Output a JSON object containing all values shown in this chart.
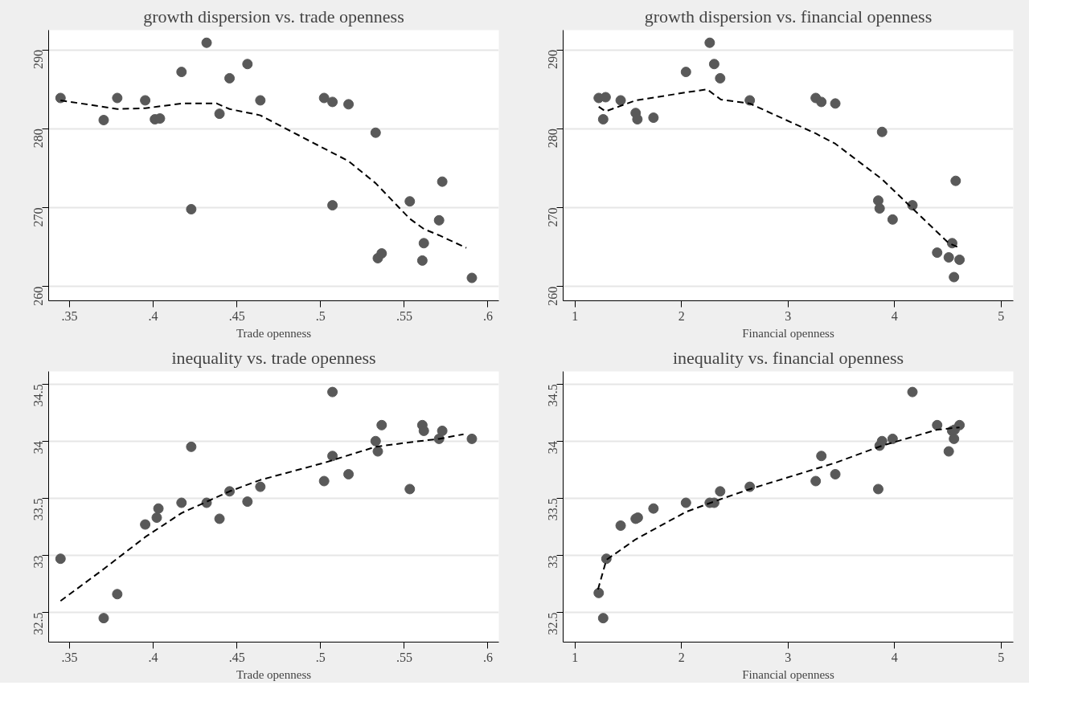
{
  "chart_data": [
    {
      "type": "scatter",
      "title": "growth dispersion vs. trade openness",
      "xlabel": "Trade openness",
      "xlim": [
        0.3375,
        0.6065
      ],
      "xticks": [
        {
          "value": 0.35,
          "label": ".35"
        },
        {
          "value": 0.4,
          "label": ".4"
        },
        {
          "value": 0.45,
          "label": ".45"
        },
        {
          "value": 0.5,
          "label": ".5"
        },
        {
          "value": 0.55,
          "label": ".55"
        },
        {
          "value": 0.6,
          "label": ".6"
        }
      ],
      "ylim": [
        258.2,
        292.5
      ],
      "yticks": [
        260,
        270,
        280,
        290
      ],
      "grid": "y",
      "series": [
        {
          "marker": "circle",
          "color": "#595959",
          "x": [
            0.3446,
            0.3704,
            0.3785,
            0.3952,
            0.401,
            0.404,
            0.4169,
            0.4227,
            0.4319,
            0.4396,
            0.4456,
            0.4563,
            0.464,
            0.5021,
            0.5071,
            0.5071,
            0.5167,
            0.5329,
            0.5342,
            0.5365,
            0.5533,
            0.5617,
            0.5608,
            0.5727,
            0.5708,
            0.5904
          ],
          "values": [
            283.9,
            281.1,
            283.9,
            283.6,
            281.2,
            281.3,
            287.2,
            269.8,
            290.9,
            281.9,
            286.4,
            288.2,
            283.6,
            283.9,
            283.4,
            270.3,
            283.1,
            279.5,
            263.6,
            264.2,
            270.8,
            265.5,
            263.3,
            273.3,
            268.4,
            261.1
          ]
        },
        {
          "type": "line",
          "line_style": "dashed",
          "color": "#000000",
          "x": [
            0.3446,
            0.3785,
            0.3952,
            0.4025,
            0.4169,
            0.438,
            0.4456,
            0.464,
            0.5021,
            0.5167,
            0.5329,
            0.5533,
            0.5617,
            0.5708,
            0.5871
          ],
          "values": [
            283.6,
            282.5,
            282.6,
            282.8,
            283.2,
            283.2,
            282.5,
            281.7,
            277.5,
            275.9,
            273.1,
            268.6,
            267.3,
            266.5,
            264.9
          ]
        }
      ]
    },
    {
      "type": "scatter",
      "title": "growth dispersion vs. financial openness",
      "xlabel": "Financial openness",
      "xlim": [
        0.889,
        5.115
      ],
      "xticks": [
        1,
        2,
        3,
        4,
        5
      ],
      "ylim": [
        258.2,
        292.5
      ],
      "yticks": [
        260,
        270,
        280,
        290
      ],
      "grid": "y",
      "series": [
        {
          "marker": "circle",
          "color": "#595959",
          "x": [
            1.223,
            1.288,
            1.265,
            1.429,
            1.57,
            1.586,
            1.737,
            2.042,
            2.265,
            2.307,
            2.363,
            2.641,
            3.26,
            3.313,
            3.444,
            3.883,
            3.847,
            3.86,
            3.982,
            4.168,
            4.574,
            4.4,
            4.541,
            4.509,
            4.61,
            4.558
          ],
          "values": [
            283.9,
            284.0,
            281.2,
            283.6,
            282.0,
            281.2,
            281.4,
            287.2,
            290.9,
            288.2,
            286.4,
            283.6,
            283.9,
            283.4,
            283.2,
            279.6,
            270.9,
            269.9,
            268.5,
            270.3,
            273.4,
            264.3,
            265.5,
            263.7,
            263.4,
            261.2
          ]
        },
        {
          "type": "line",
          "line_style": "dashed",
          "color": "#000000",
          "x": [
            1.223,
            1.288,
            1.57,
            2.042,
            2.24,
            2.37,
            2.641,
            3.26,
            3.444,
            3.883,
            4.168,
            4.509,
            4.61
          ],
          "values": [
            282.8,
            282.2,
            283.6,
            284.6,
            285.0,
            283.7,
            283.2,
            279.4,
            278.1,
            273.6,
            269.9,
            265.5,
            264.9
          ]
        }
      ]
    },
    {
      "type": "scatter",
      "title": "inequality vs. trade openness",
      "xlabel": "Trade openness",
      "xlim": [
        0.3375,
        0.6065
      ],
      "xticks": [
        {
          "value": 0.35,
          "label": ".35"
        },
        {
          "value": 0.4,
          "label": ".4"
        },
        {
          "value": 0.45,
          "label": ".45"
        },
        {
          "value": 0.5,
          "label": ".5"
        },
        {
          "value": 0.55,
          "label": ".55"
        },
        {
          "value": 0.6,
          "label": ".6"
        }
      ],
      "ylim": [
        32.24,
        34.61
      ],
      "yticks": [
        32.5,
        33,
        33.5,
        34,
        34.5
      ],
      "grid": "y",
      "series": [
        {
          "marker": "circle",
          "color": "#595959",
          "x": [
            0.3446,
            0.3704,
            0.3785,
            0.3952,
            0.4021,
            0.4031,
            0.4169,
            0.4227,
            0.4319,
            0.4396,
            0.4456,
            0.4563,
            0.464,
            0.5021,
            0.5071,
            0.5071,
            0.5167,
            0.5329,
            0.5342,
            0.5365,
            0.5533,
            0.5608,
            0.5617,
            0.5708,
            0.5727,
            0.5904
          ],
          "values": [
            32.97,
            32.45,
            32.66,
            33.27,
            33.33,
            33.41,
            33.46,
            33.95,
            33.46,
            33.32,
            33.56,
            33.47,
            33.6,
            33.65,
            34.43,
            33.87,
            33.71,
            34.0,
            33.91,
            34.14,
            33.58,
            34.14,
            34.09,
            34.02,
            34.09,
            34.02
          ]
        },
        {
          "type": "line",
          "line_style": "dashed",
          "color": "#000000",
          "x": [
            0.3446,
            0.3704,
            0.3952,
            0.4169,
            0.4456,
            0.464,
            0.5021,
            0.5329,
            0.5533,
            0.5708,
            0.5854
          ],
          "values": [
            32.6,
            32.88,
            33.16,
            33.37,
            33.56,
            33.66,
            33.81,
            33.95,
            33.99,
            34.02,
            34.06
          ]
        }
      ]
    },
    {
      "type": "scatter",
      "title": "inequality vs. financial openness",
      "xlabel": "Financial openness",
      "xlim": [
        0.889,
        5.115
      ],
      "xticks": [
        1,
        2,
        3,
        4,
        5
      ],
      "ylim": [
        32.24,
        34.61
      ],
      "yticks": [
        32.5,
        33,
        33.5,
        34,
        34.5
      ],
      "grid": "y",
      "series": [
        {
          "marker": "circle",
          "color": "#595959",
          "x": [
            1.223,
            1.265,
            1.295,
            1.429,
            1.57,
            1.59,
            1.737,
            2.042,
            2.265,
            2.307,
            2.363,
            2.641,
            3.26,
            3.313,
            3.444,
            3.847,
            3.86,
            3.883,
            3.982,
            4.168,
            4.4,
            4.509,
            4.541,
            4.558,
            4.564,
            4.61
          ],
          "values": [
            32.67,
            32.45,
            32.97,
            33.26,
            33.32,
            33.33,
            33.41,
            33.46,
            33.46,
            33.46,
            33.56,
            33.6,
            33.65,
            33.87,
            33.71,
            33.58,
            33.96,
            34.0,
            34.02,
            34.43,
            34.14,
            33.91,
            34.09,
            34.02,
            34.1,
            34.14
          ]
        },
        {
          "type": "line",
          "line_style": "dashed",
          "color": "#000000",
          "x": [
            1.216,
            1.295,
            1.57,
            2.042,
            2.363,
            2.641,
            3.444,
            3.883,
            4.4,
            4.61
          ],
          "values": [
            32.7,
            32.96,
            33.14,
            33.38,
            33.49,
            33.58,
            33.81,
            33.96,
            34.1,
            34.12
          ]
        }
      ]
    }
  ]
}
